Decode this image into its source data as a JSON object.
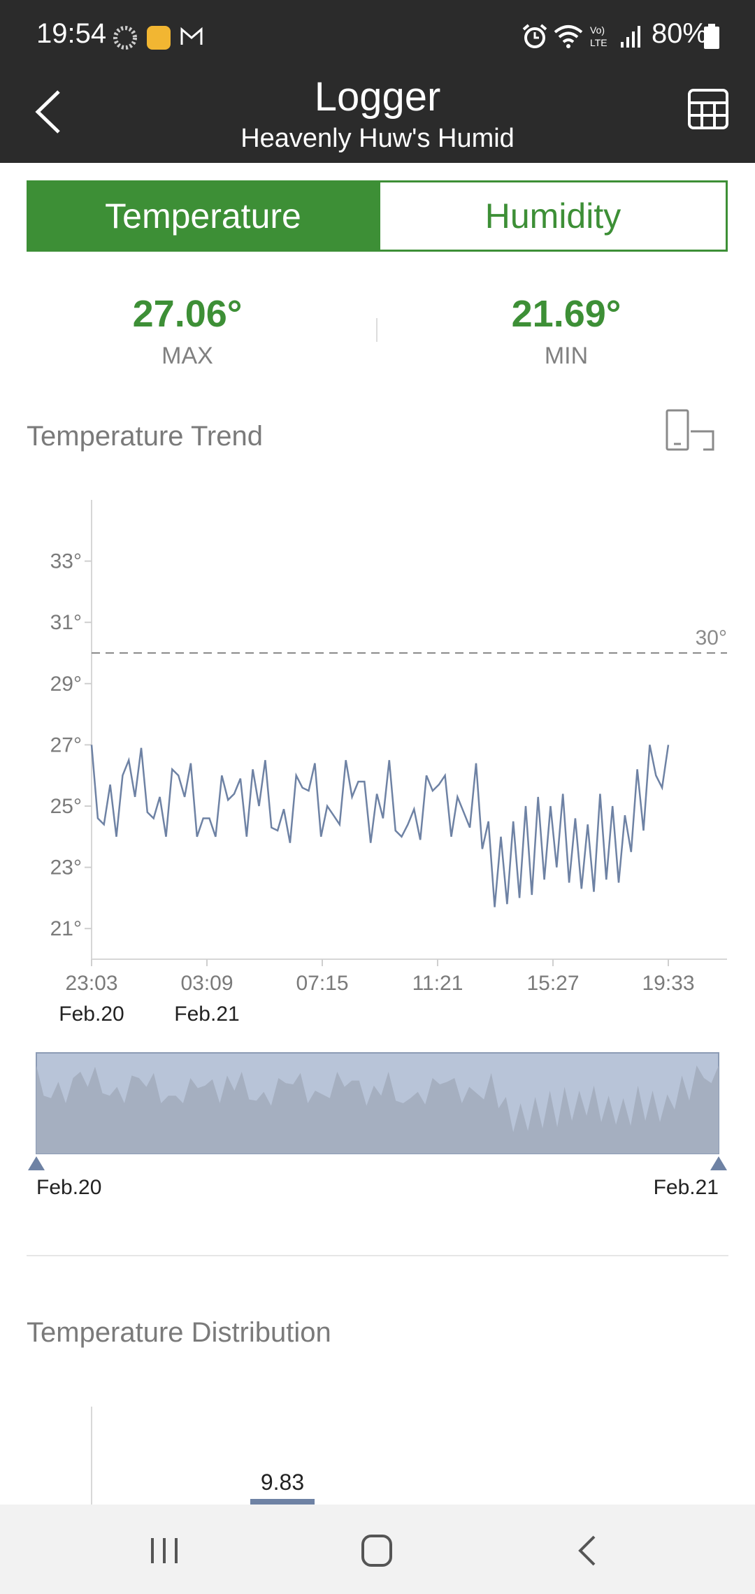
{
  "status_bar": {
    "time": "19:54",
    "battery": "80%"
  },
  "header": {
    "title": "Logger",
    "subtitle": "Heavenly Huw's Humid"
  },
  "tabs": [
    {
      "label": "Temperature",
      "active": true
    },
    {
      "label": "Humidity",
      "active": false
    }
  ],
  "stats": {
    "max_value": "27.06°",
    "max_label": "MAX",
    "min_value": "21.69°",
    "min_label": "MIN"
  },
  "trend": {
    "title": "Temperature Trend",
    "threshold_label": "30°",
    "range_start_label": "Feb.20",
    "range_end_label": "Feb.21"
  },
  "distribution": {
    "title": "Temperature Distribution",
    "first_bar_value": "9.83"
  },
  "colors": {
    "accent": "#3d8f36",
    "line": "#6e82a4",
    "bar": "#2b2b2b"
  },
  "chart_data": {
    "type": "line",
    "ylim": [
      20,
      35
    ],
    "yticks": [
      "33°",
      "31°",
      "29°",
      "27°",
      "25°",
      "23°",
      "21°"
    ],
    "ytick_values": [
      33,
      31,
      29,
      27,
      25,
      23,
      21
    ],
    "xticks": [
      {
        "time": "23:03",
        "date": "Feb.20"
      },
      {
        "time": "03:09",
        "date": "Feb.21"
      },
      {
        "time": "07:15",
        "date": ""
      },
      {
        "time": "11:21",
        "date": ""
      },
      {
        "time": "15:27",
        "date": ""
      },
      {
        "time": "19:33",
        "date": ""
      }
    ],
    "threshold": 30,
    "series": [
      {
        "values": [
          27.0,
          24.6,
          24.4,
          25.7,
          24.0,
          26.0,
          26.5,
          25.3,
          26.9,
          24.8,
          24.6,
          25.3,
          24.0,
          26.2,
          26.0,
          25.3,
          26.4,
          24.0,
          24.6,
          24.6,
          24.0,
          26.0,
          25.2,
          25.4,
          25.9,
          24.0,
          26.2,
          25.0,
          26.5,
          24.3,
          24.2,
          24.9,
          23.8,
          26.0,
          25.6,
          25.5,
          26.4,
          24.0,
          25.0,
          24.7,
          24.4,
          26.5,
          25.3,
          25.8,
          25.8,
          23.8,
          25.4,
          24.6,
          26.5,
          24.2,
          24.0,
          24.4,
          24.9,
          23.9,
          26.0,
          25.5,
          25.7,
          26.0,
          24.0,
          25.3,
          24.8,
          24.3,
          26.4,
          23.6,
          24.5,
          21.7,
          24.0,
          21.8,
          24.5,
          22.0,
          25.0,
          22.1,
          25.3,
          22.6,
          25.0,
          23.0,
          25.4,
          22.5,
          24.6,
          22.3,
          24.4,
          22.2,
          25.4,
          22.6,
          25.0,
          22.5,
          24.7,
          23.5,
          26.2,
          24.2,
          27.0,
          26.0,
          25.6,
          27.0
        ]
      }
    ]
  }
}
